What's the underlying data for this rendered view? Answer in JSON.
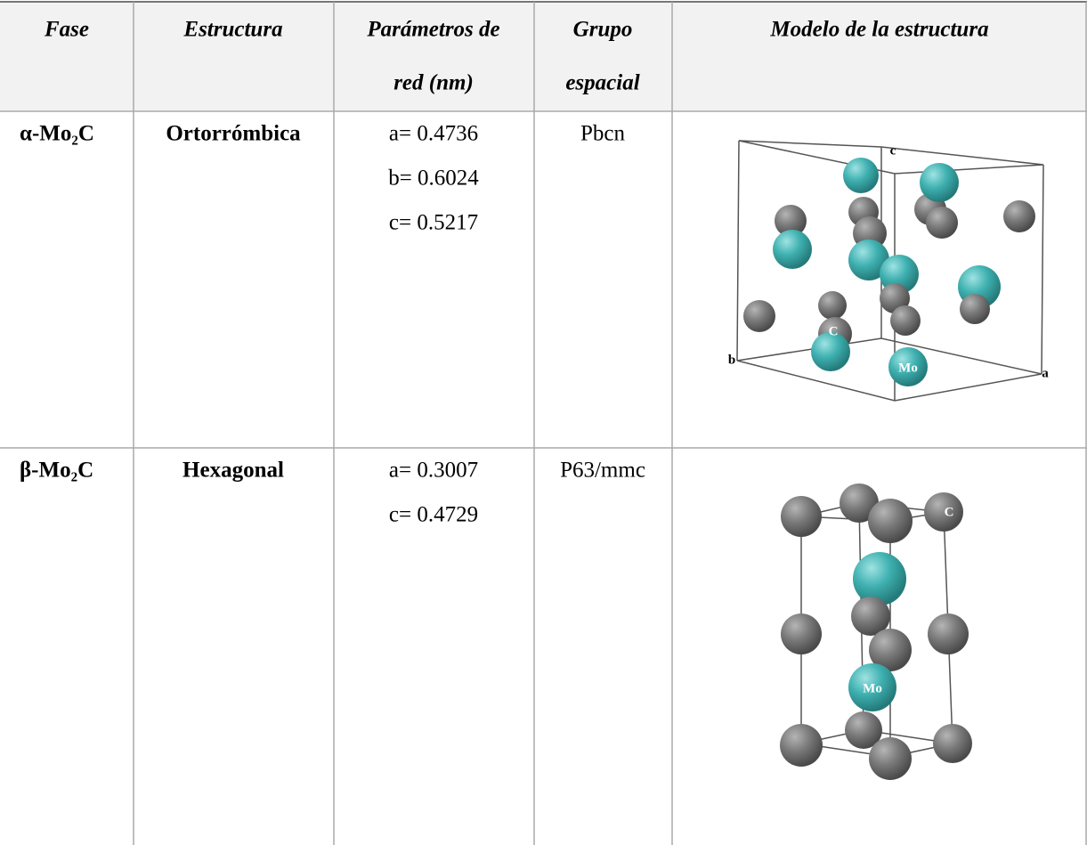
{
  "table": {
    "header": [
      [
        "Fase"
      ],
      [
        "Estructura"
      ],
      [
        "Parámetros de",
        "red (nm)"
      ],
      [
        "Grupo",
        "espacial"
      ],
      [
        "Modelo de la estructura"
      ]
    ],
    "rows": [
      {
        "fase": "α-Mo₂C",
        "estructura": "Ortorrómbica",
        "parametros": [
          "a= 0.4736",
          "b= 0.6024",
          "c= 0.5217"
        ],
        "grupo": "Pbcn",
        "model_labels": [
          "c",
          "C",
          "b",
          "Mo",
          "a"
        ]
      },
      {
        "fase": "β-Mo₂C",
        "estructura": "Hexagonal",
        "parametros": [
          "a= 0.3007",
          "c= 0.4729"
        ],
        "grupo": "P63/mmc",
        "model_labels": [
          "C",
          "Mo"
        ]
      }
    ]
  }
}
